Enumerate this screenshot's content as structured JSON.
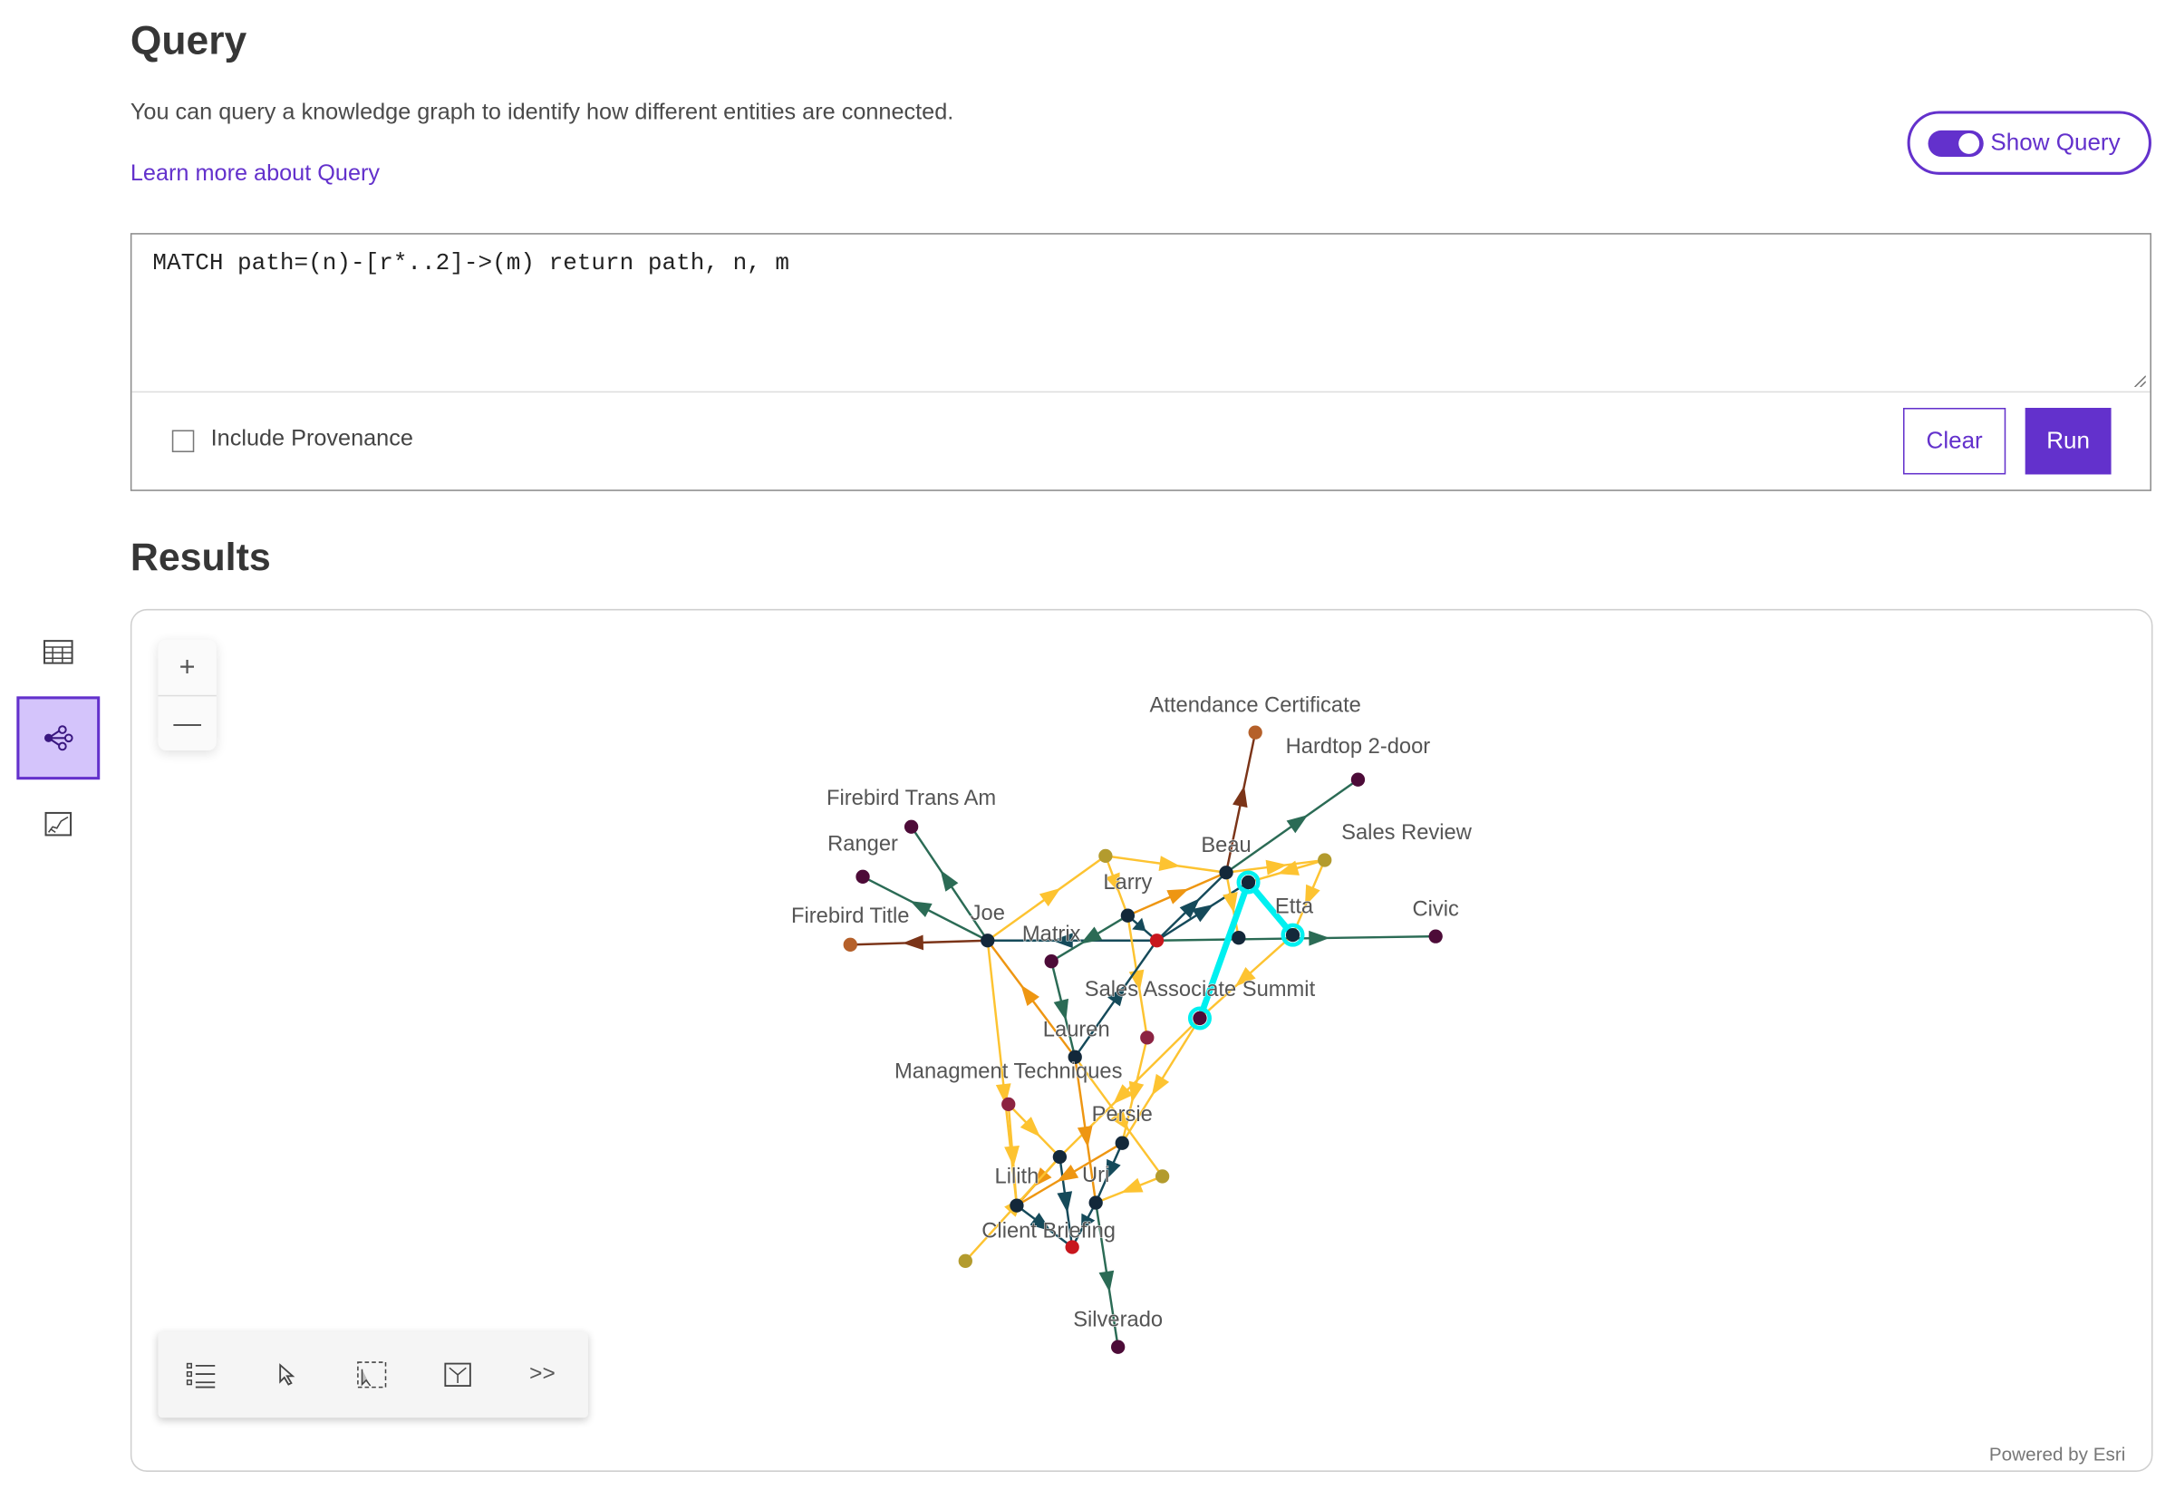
{
  "header": {
    "title": "Query",
    "description": "You can query a knowledge graph to identify how different entities are connected.",
    "learn_more_link": "Learn more about Query",
    "show_query_label": "Show Query",
    "show_query_on": true
  },
  "query": {
    "text": "MATCH path=(n)-[r*..2]->(m) return path, n, m",
    "include_provenance_label": "Include Provenance",
    "include_provenance_checked": false,
    "clear_label": "Clear",
    "run_label": "Run"
  },
  "results": {
    "title": "Results",
    "sidebar": [
      {
        "icon": "table-icon",
        "active": false
      },
      {
        "icon": "link-chart-icon",
        "active": true
      },
      {
        "icon": "map-icon",
        "active": false
      }
    ],
    "zoom_in": "+",
    "zoom_out": "—",
    "toolbar": [
      {
        "icon": "legend-list-icon"
      },
      {
        "icon": "select-pointer-icon"
      },
      {
        "icon": "lasso-select-icon"
      },
      {
        "icon": "layout-icon"
      },
      {
        "icon": "expand-chevrons-icon",
        "text": ">>"
      }
    ],
    "attribution": "Powered by Esri"
  },
  "colors": {
    "accent": "#6331cc",
    "highlight": "#00f0f0",
    "edge": {
      "teal": "#154a5a",
      "green": "#2b6b55",
      "yellow": "#fdc331",
      "orange": "#ee9612",
      "brown": "#7b3418"
    },
    "node": {
      "dark": "#13283a",
      "purple": "#4d0b38",
      "brown": "#b5602a",
      "red": "#c8161d",
      "olive": "#b39b2e",
      "crimson": "#8c2342"
    }
  },
  "graph": {
    "nodes": [
      {
        "id": "attend",
        "label": "Attendance Certificate",
        "color": "brown"
      },
      {
        "id": "hardtop",
        "label": "Hardtop 2-door",
        "color": "purple"
      },
      {
        "id": "fta",
        "label": "Firebird Trans Am",
        "color": "purple"
      },
      {
        "id": "ranger",
        "label": "Ranger",
        "color": "purple"
      },
      {
        "id": "ftitle",
        "label": "Firebird Title",
        "color": "brown"
      },
      {
        "id": "joe",
        "label": "Joe",
        "color": "dark"
      },
      {
        "id": "matrix",
        "label": "Matrix",
        "color": "purple"
      },
      {
        "id": "larry",
        "label": "Larry",
        "color": "dark"
      },
      {
        "id": "hub",
        "label": "",
        "color": "red"
      },
      {
        "id": "beau",
        "label": "Beau",
        "color": "dark"
      },
      {
        "id": "oliveTop",
        "label": "",
        "color": "olive"
      },
      {
        "id": "salesrev",
        "label": "Sales Review",
        "color": "olive"
      },
      {
        "id": "ucy",
        "label": "",
        "color": "dark",
        "highlighted": true
      },
      {
        "id": "etta",
        "label": "Etta",
        "color": "dark",
        "highlighted": true
      },
      {
        "id": "umid",
        "label": "",
        "color": "dark"
      },
      {
        "id": "civic",
        "label": "Civic",
        "color": "purple"
      },
      {
        "id": "sas",
        "label": "Sales Associate Summit",
        "color": "purple",
        "highlighted": true
      },
      {
        "id": "lauren",
        "label": "Lauren",
        "color": "dark"
      },
      {
        "id": "crim1",
        "label": "",
        "color": "crimson"
      },
      {
        "id": "mgmt",
        "label": "Managment Techniques",
        "color": "crimson"
      },
      {
        "id": "persie",
        "label": "Persie",
        "color": "dark"
      },
      {
        "id": "upl",
        "label": "",
        "color": "dark"
      },
      {
        "id": "oliveR",
        "label": "",
        "color": "olive"
      },
      {
        "id": "lilith",
        "label": "Lilith",
        "color": "dark"
      },
      {
        "id": "uri",
        "label": "Uri",
        "color": "dark"
      },
      {
        "id": "client",
        "label": "Client Briefing",
        "color": "red"
      },
      {
        "id": "oliveL",
        "label": "",
        "color": "olive"
      },
      {
        "id": "silverado",
        "label": "Silverado",
        "color": "purple"
      }
    ],
    "edges": [
      {
        "from": "joe",
        "to": "ftitle",
        "color": "brown"
      },
      {
        "from": "joe",
        "to": "ranger",
        "color": "green"
      },
      {
        "from": "joe",
        "to": "fta",
        "color": "green"
      },
      {
        "from": "joe",
        "to": "oliveTop",
        "color": "yellow"
      },
      {
        "from": "lauren",
        "to": "joe",
        "color": "orange"
      },
      {
        "from": "joe",
        "to": "lilith",
        "color": "yellow"
      },
      {
        "from": "hub",
        "to": "joe",
        "color": "teal"
      },
      {
        "from": "larry",
        "to": "matrix",
        "color": "green"
      },
      {
        "from": "larry",
        "to": "hub",
        "color": "teal"
      },
      {
        "from": "larry",
        "to": "beau",
        "color": "orange"
      },
      {
        "from": "oliveTop",
        "to": "larry",
        "color": "yellow"
      },
      {
        "from": "larry",
        "to": "crim1",
        "color": "yellow"
      },
      {
        "from": "oliveTop",
        "to": "beau",
        "color": "yellow"
      },
      {
        "from": "beau",
        "to": "attend",
        "color": "brown"
      },
      {
        "from": "beau",
        "to": "hardtop",
        "color": "green"
      },
      {
        "from": "beau",
        "to": "salesrev",
        "color": "yellow"
      },
      {
        "from": "hub",
        "to": "beau",
        "color": "teal"
      },
      {
        "from": "hub",
        "to": "ucy",
        "color": "teal"
      },
      {
        "from": "hub",
        "to": "civic",
        "color": "green"
      },
      {
        "from": "beau",
        "to": "umid",
        "color": "yellow"
      },
      {
        "from": "salesrev",
        "to": "etta",
        "color": "yellow"
      },
      {
        "from": "salesrev",
        "to": "ucy",
        "color": "yellow"
      },
      {
        "from": "etta",
        "to": "sas",
        "color": "yellow"
      },
      {
        "from": "matrix",
        "to": "lauren",
        "color": "green"
      },
      {
        "from": "lauren",
        "to": "hub",
        "color": "teal"
      },
      {
        "from": "mgmt",
        "to": "upl",
        "color": "yellow"
      },
      {
        "from": "mgmt",
        "to": "lilith",
        "color": "yellow"
      },
      {
        "from": "sas",
        "to": "persie",
        "color": "yellow"
      },
      {
        "from": "sas",
        "to": "upl",
        "color": "yellow"
      },
      {
        "from": "crim1",
        "to": "persie",
        "color": "yellow"
      },
      {
        "from": "lauren",
        "to": "uri",
        "color": "orange"
      },
      {
        "from": "upl",
        "to": "client",
        "color": "teal"
      },
      {
        "from": "lilith",
        "to": "client",
        "color": "teal"
      },
      {
        "from": "uri",
        "to": "client",
        "color": "teal"
      },
      {
        "from": "uri",
        "to": "silverado",
        "color": "green"
      },
      {
        "from": "persie",
        "to": "uri",
        "color": "teal"
      },
      {
        "from": "persie",
        "to": "lilith",
        "color": "orange"
      },
      {
        "from": "upl",
        "to": "lilith",
        "color": "orange"
      },
      {
        "from": "oliveR",
        "to": "uri",
        "color": "yellow"
      },
      {
        "from": "lauren",
        "to": "oliveR",
        "color": "yellow"
      },
      {
        "from": "oliveL",
        "to": "upl",
        "color": "yellow"
      }
    ],
    "highlighted_path": [
      "sas",
      "ucy",
      "etta"
    ]
  }
}
